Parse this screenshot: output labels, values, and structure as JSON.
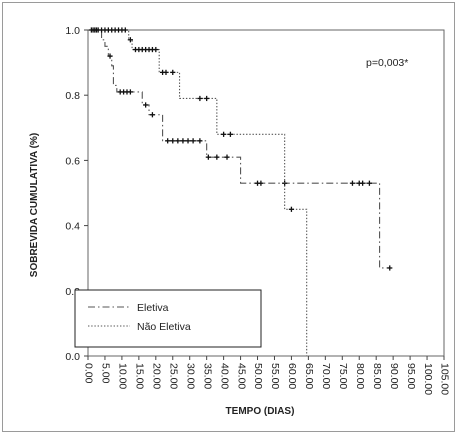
{
  "chart_data": {
    "type": "line",
    "subtype": "kaplan-meier step",
    "title": "",
    "xlabel": "TEMPO (DIAS)",
    "ylabel": "SOBREVIDA CUMULATIVA (%)",
    "xlim": [
      0,
      105
    ],
    "ylim": [
      0,
      1
    ],
    "x_ticks": [
      "0.00",
      "5.00",
      "10.00",
      "15.00",
      "20.00",
      "25.00",
      "30.00",
      "35.00",
      "40.00",
      "45.00",
      "50.00",
      "55.00",
      "60.00",
      "65.00",
      "70.00",
      "75.00",
      "80.00",
      "85.00",
      "90.00",
      "95.00",
      "100.00",
      "105.00"
    ],
    "y_ticks": [
      "0.0",
      "0.2",
      "0.4",
      "0.6",
      "0.8",
      "1.0"
    ],
    "annotation": "p=0,003*",
    "legend_position": "bottom-left",
    "grid": false,
    "series": [
      {
        "name": "Eletiva",
        "dash": "dash-dot",
        "color": "#555555",
        "steps": [
          {
            "x": 0,
            "y": 1.0
          },
          {
            "x": 4,
            "y": 0.97
          },
          {
            "x": 5,
            "y": 0.95
          },
          {
            "x": 6,
            "y": 0.92
          },
          {
            "x": 7,
            "y": 0.89
          },
          {
            "x": 7.5,
            "y": 0.83
          },
          {
            "x": 8.5,
            "y": 0.81
          },
          {
            "x": 16,
            "y": 0.77
          },
          {
            "x": 18,
            "y": 0.74
          },
          {
            "x": 22,
            "y": 0.66
          },
          {
            "x": 35,
            "y": 0.61
          },
          {
            "x": 45,
            "y": 0.53
          },
          {
            "x": 86,
            "y": 0.27
          },
          {
            "x": 89,
            "y": 0.27
          }
        ],
        "censored": [
          {
            "x": 1.5,
            "y": 1.0
          },
          {
            "x": 2.5,
            "y": 1.0
          },
          {
            "x": 6.5,
            "y": 0.92
          },
          {
            "x": 9.5,
            "y": 0.81
          },
          {
            "x": 10.5,
            "y": 0.81
          },
          {
            "x": 11.5,
            "y": 0.81
          },
          {
            "x": 12.5,
            "y": 0.81
          },
          {
            "x": 17,
            "y": 0.77
          },
          {
            "x": 19,
            "y": 0.74
          },
          {
            "x": 23.5,
            "y": 0.66
          },
          {
            "x": 25,
            "y": 0.66
          },
          {
            "x": 26.5,
            "y": 0.66
          },
          {
            "x": 28,
            "y": 0.66
          },
          {
            "x": 29.5,
            "y": 0.66
          },
          {
            "x": 31,
            "y": 0.66
          },
          {
            "x": 33,
            "y": 0.66
          },
          {
            "x": 35.5,
            "y": 0.61
          },
          {
            "x": 38,
            "y": 0.61
          },
          {
            "x": 41,
            "y": 0.61
          },
          {
            "x": 50,
            "y": 0.53
          },
          {
            "x": 51,
            "y": 0.53
          },
          {
            "x": 58,
            "y": 0.53
          },
          {
            "x": 78,
            "y": 0.53
          },
          {
            "x": 80,
            "y": 0.53
          },
          {
            "x": 81,
            "y": 0.53
          },
          {
            "x": 83,
            "y": 0.53
          },
          {
            "x": 89,
            "y": 0.27
          }
        ]
      },
      {
        "name": "Não Eletiva",
        "dash": "dotted",
        "color": "#555555",
        "steps": [
          {
            "x": 0,
            "y": 1.0
          },
          {
            "x": 12,
            "y": 0.97
          },
          {
            "x": 13,
            "y": 0.94
          },
          {
            "x": 21,
            "y": 0.87
          },
          {
            "x": 27,
            "y": 0.79
          },
          {
            "x": 38,
            "y": 0.68
          },
          {
            "x": 58,
            "y": 0.45
          },
          {
            "x": 64.5,
            "y": 0.0
          }
        ],
        "censored": [
          {
            "x": 1,
            "y": 1.0
          },
          {
            "x": 2,
            "y": 1.0
          },
          {
            "x": 3,
            "y": 1.0
          },
          {
            "x": 4,
            "y": 1.0
          },
          {
            "x": 5,
            "y": 1.0
          },
          {
            "x": 6,
            "y": 1.0
          },
          {
            "x": 7,
            "y": 1.0
          },
          {
            "x": 8,
            "y": 1.0
          },
          {
            "x": 9,
            "y": 1.0
          },
          {
            "x": 10,
            "y": 1.0
          },
          {
            "x": 11,
            "y": 1.0
          },
          {
            "x": 12.5,
            "y": 0.97
          },
          {
            "x": 14,
            "y": 0.94
          },
          {
            "x": 15,
            "y": 0.94
          },
          {
            "x": 16,
            "y": 0.94
          },
          {
            "x": 17,
            "y": 0.94
          },
          {
            "x": 18,
            "y": 0.94
          },
          {
            "x": 19,
            "y": 0.94
          },
          {
            "x": 20,
            "y": 0.94
          },
          {
            "x": 22,
            "y": 0.87
          },
          {
            "x": 23,
            "y": 0.87
          },
          {
            "x": 25,
            "y": 0.87
          },
          {
            "x": 33,
            "y": 0.79
          },
          {
            "x": 35,
            "y": 0.79
          },
          {
            "x": 40,
            "y": 0.68
          },
          {
            "x": 42,
            "y": 0.68
          },
          {
            "x": 60,
            "y": 0.45
          }
        ]
      }
    ]
  }
}
